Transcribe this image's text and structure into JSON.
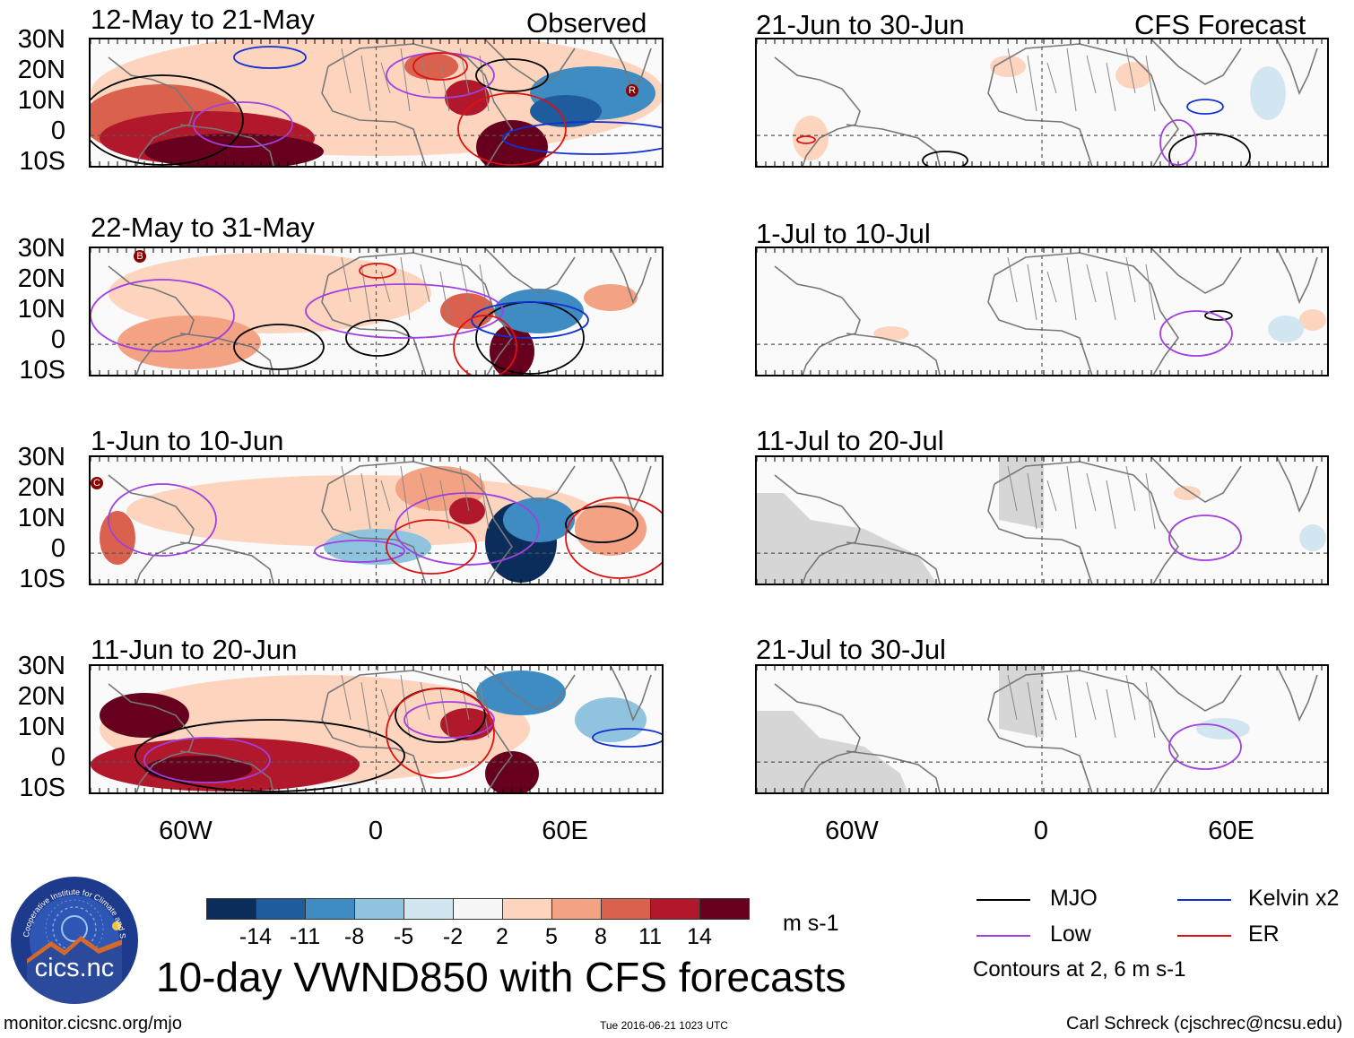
{
  "header": {
    "observed_label": "Observed",
    "forecast_label": "CFS Forecast"
  },
  "panels_left": [
    {
      "title": "12-May to 21-May"
    },
    {
      "title": "22-May to 31-May"
    },
    {
      "title": "1-Jun to 10-Jun"
    },
    {
      "title": "11-Jun to 20-Jun"
    }
  ],
  "panels_right": [
    {
      "title": "21-Jun to 30-Jun"
    },
    {
      "title": "1-Jul to 10-Jul"
    },
    {
      "title": "11-Jul to 20-Jul"
    },
    {
      "title": "21-Jul to 30-Jul"
    }
  ],
  "lat_labels": [
    "30N",
    "20N",
    "10N",
    "0",
    "10S"
  ],
  "lon_labels": [
    "60W",
    "0",
    "60E"
  ],
  "storm_markers": {
    "p1": "R",
    "p2": "B",
    "p3": "C"
  },
  "colorbar": {
    "colors": [
      "#0b2d5c",
      "#1f5c9e",
      "#3f8cc3",
      "#8fc3de",
      "#d2e6f2",
      "#f7f7f7",
      "#fdd5bf",
      "#f3a383",
      "#d9614d",
      "#b2182b",
      "#67001f"
    ],
    "ticks": [
      "-14",
      "-11",
      "-8",
      "-5",
      "-2",
      "2",
      "5",
      "8",
      "11",
      "14"
    ],
    "unit": "m s-1"
  },
  "legend": {
    "items": [
      {
        "label": "MJO",
        "color": "#000000"
      },
      {
        "label": "Kelvin x2",
        "color": "#1030d0"
      },
      {
        "label": "Low",
        "color": "#a040e0"
      },
      {
        "label": "ER",
        "color": "#e01010"
      }
    ],
    "note": "Contours at 2, 6 m s-1"
  },
  "main_title": "10-day VWND850 with CFS forecasts",
  "logo_text": "cics.nc",
  "logo_ring_text": "Cooperative Institute for Climate and Satellites",
  "footer": {
    "url": "monitor.cicsnc.org/mjo",
    "timestamp": "Tue 2016-06-21 1023 UTC",
    "author": "Carl Schreck (cjschrec@ncsu.edu)"
  }
}
